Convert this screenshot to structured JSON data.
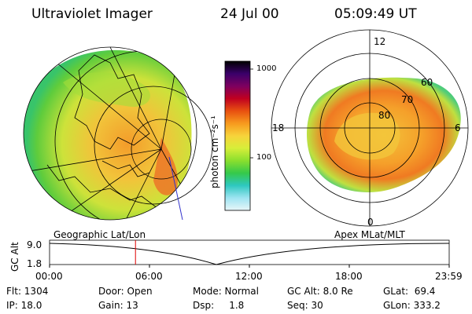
{
  "header": {
    "title": "Ultraviolet Imager",
    "date": "24 Jul 00",
    "time": "05:09:49 UT"
  },
  "colorbar": {
    "label": "photon cm⁻²s⁻¹",
    "ticks": [
      "1000",
      "100"
    ],
    "stops": [
      "#000000",
      "#3a006a",
      "#7d0060",
      "#c00020",
      "#e85010",
      "#f79a1e",
      "#f7d33b",
      "#d7ee3a",
      "#8adf2e",
      "#35c94a",
      "#2ec8c0",
      "#9ee4f2",
      "#e8f6f8"
    ]
  },
  "left_map": {
    "caption": "Geographic Lat/Lon"
  },
  "right_map": {
    "caption": "Apex MLat/MLT",
    "lat_labels": [
      "80",
      "70",
      "60"
    ],
    "mlt_labels": [
      "12",
      "18",
      "6",
      "0"
    ]
  },
  "alt_plot": {
    "ylabel": "GC Alt",
    "yticks": [
      "9.0",
      "1.8"
    ],
    "xticks": [
      "00:00",
      "06:00",
      "12:00",
      "18:00",
      "23:59"
    ],
    "current_time_hours": 5.16
  },
  "info": {
    "col1": [
      "Flt: 1304",
      "IP: 18.0"
    ],
    "col2": [
      "Door: Open",
      "Gain: 13"
    ],
    "col3": [
      "Mode: Normal",
      "Dsp:     1.8"
    ],
    "col4": [
      "GC Alt: 8.0 Re",
      "Seq: 30"
    ],
    "col5": [
      "GLat:  69.4",
      "GLon: 333.2"
    ]
  }
}
